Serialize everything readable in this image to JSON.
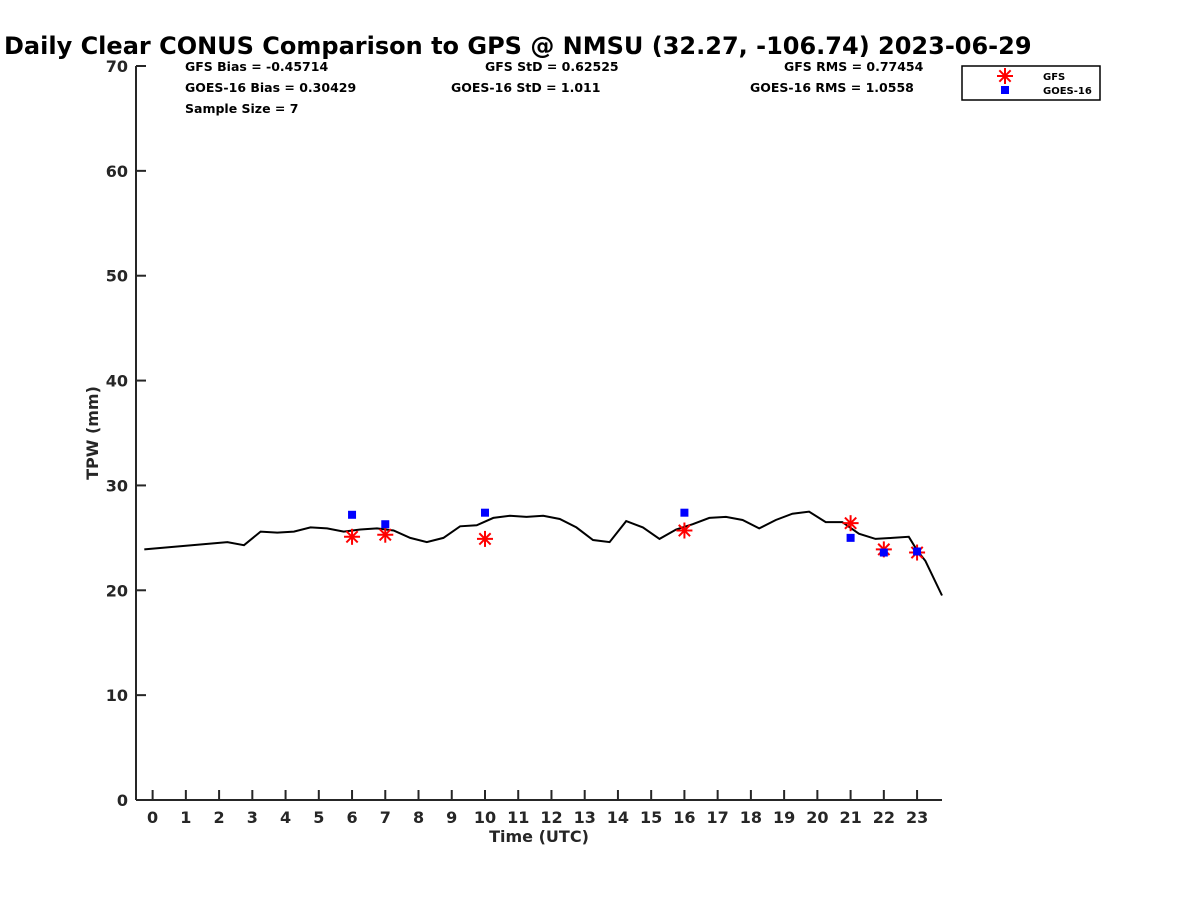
{
  "chart_data": {
    "type": "scatter",
    "title": "Daily Clear CONUS Comparison to GPS @ NMSU (32.27, -106.74) 2023-06-29",
    "xlabel": "Time (UTC)",
    "ylabel": "TPW (mm)",
    "xlim": [
      -0.5,
      23.75
    ],
    "ylim": [
      0,
      70
    ],
    "x_ticks": [
      "0",
      "1",
      "2",
      "3",
      "4",
      "5",
      "6",
      "7",
      "8",
      "9",
      "10",
      "11",
      "12",
      "13",
      "14",
      "15",
      "16",
      "17",
      "18",
      "19",
      "20",
      "21",
      "22",
      "23"
    ],
    "y_ticks": [
      "0",
      "10",
      "20",
      "30",
      "40",
      "50",
      "60",
      "70"
    ],
    "grid": false,
    "legend_position": "top-right",
    "stats": {
      "gfs_bias": "GFS Bias = -0.45714",
      "goes_bias": "GOES-16 Bias = 0.30429",
      "sample_size": "Sample Size = 7",
      "gfs_std": "GFS StD = 0.62525",
      "goes_std": "GOES-16 StD = 1.011",
      "gfs_rms": "GFS RMS = 0.77454",
      "goes_rms": "GOES-16 RMS = 1.0558"
    },
    "gps_line": {
      "color": "#000000",
      "x": [
        -0.25,
        2.25,
        2.75,
        3.25,
        3.75,
        4.25,
        4.75,
        5.25,
        5.75,
        6.25,
        6.75,
        7.25,
        7.75,
        8.25,
        8.75,
        9.25,
        9.75,
        10.25,
        10.75,
        11.25,
        11.75,
        12.25,
        12.75,
        13.25,
        13.75,
        14.25,
        14.75,
        15.25,
        15.75,
        16.25,
        16.75,
        17.25,
        17.75,
        18.25,
        18.75,
        19.25,
        19.75,
        20.25,
        20.75,
        21.25,
        21.75,
        22.25,
        22.75,
        23.0,
        23.25,
        23.75
      ],
      "y": [
        23.9,
        24.6,
        24.3,
        25.6,
        25.5,
        25.6,
        26.0,
        25.9,
        25.6,
        25.8,
        25.9,
        25.7,
        25.0,
        24.6,
        25.0,
        26.1,
        26.2,
        26.9,
        27.1,
        27.0,
        27.1,
        26.8,
        26.0,
        24.8,
        24.6,
        26.6,
        26.0,
        24.9,
        25.8,
        26.3,
        26.9,
        27.0,
        26.7,
        25.9,
        26.7,
        27.3,
        27.5,
        26.5,
        26.5,
        25.4,
        24.9,
        25.0,
        25.1,
        23.8,
        22.8,
        19.5
      ]
    },
    "series": [
      {
        "name": "GFS",
        "marker": "asterisk",
        "color": "#ff0000",
        "x": [
          6,
          7,
          10,
          16,
          21,
          22,
          23
        ],
        "y": [
          25.1,
          25.3,
          24.9,
          25.7,
          26.4,
          23.9,
          23.6
        ]
      },
      {
        "name": "GOES-16",
        "marker": "square",
        "color": "#0000ff",
        "x": [
          6,
          7,
          10,
          16,
          21,
          22,
          23
        ],
        "y": [
          27.2,
          26.3,
          27.4,
          27.4,
          25.0,
          23.6,
          23.7
        ]
      }
    ]
  }
}
